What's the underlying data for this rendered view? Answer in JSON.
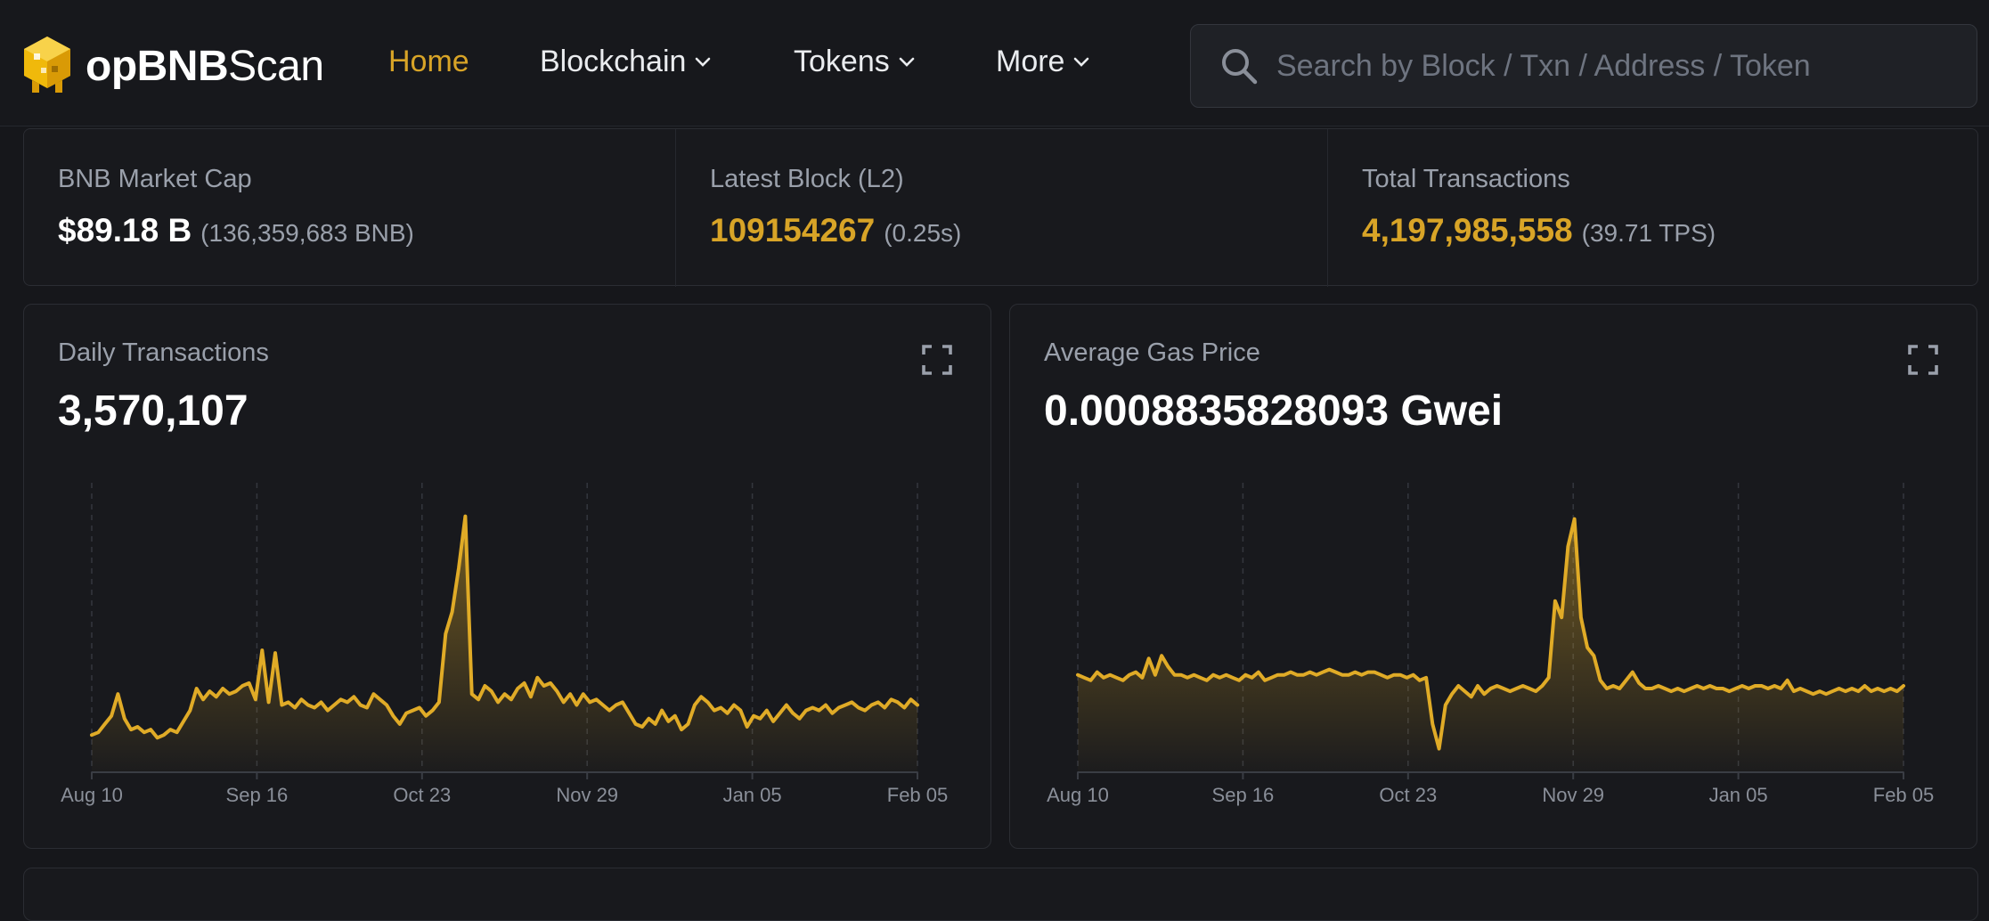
{
  "nav": {
    "logo_bold": "opBNB",
    "logo_light": "Scan",
    "items": [
      {
        "label": "Home",
        "active": true,
        "dropdown": false
      },
      {
        "label": "Blockchain",
        "active": false,
        "dropdown": true
      },
      {
        "label": "Tokens",
        "active": false,
        "dropdown": true
      },
      {
        "label": "More",
        "active": false,
        "dropdown": true
      }
    ],
    "search_placeholder": "Search by Block / Txn / Address / Token"
  },
  "stats": [
    {
      "label": "BNB Market Cap",
      "value": "$89.18 B",
      "sub": "(136,359,683 BNB)",
      "accent": false
    },
    {
      "label": "Latest Block (L2)",
      "value": "109154267",
      "sub": "(0.25s)",
      "accent": true
    },
    {
      "label": "Total Transactions",
      "value": "4,197,985,558",
      "sub": "(39.71 TPS)",
      "accent": true
    }
  ],
  "colors": {
    "accent": "#d8a427",
    "line": "#e0ab27",
    "background": "#16171b",
    "card": "#18191d"
  },
  "charts": {
    "daily": {
      "title": "Daily Transactions",
      "value": "3,570,107"
    },
    "gas": {
      "title": "Average Gas Price",
      "value": "0.0008835828093 Gwei"
    }
  },
  "chart_data": [
    {
      "type": "area",
      "title": "Daily Transactions",
      "x_ticks": [
        "Aug 10",
        "Sep 16",
        "Oct 23",
        "Nov 29",
        "Jan 05",
        "Feb 05"
      ],
      "ylim": [
        0,
        10
      ],
      "grid": "vertical dashed",
      "series": [
        {
          "values": [
            1.1,
            1.2,
            1.5,
            1.8,
            2.6,
            1.7,
            1.3,
            1.4,
            1.2,
            1.3,
            1.0,
            1.1,
            1.3,
            1.2,
            1.6,
            2.0,
            2.8,
            2.4,
            2.7,
            2.5,
            2.8,
            2.6,
            2.7,
            2.9,
            3.0,
            2.4,
            4.2,
            2.3,
            4.1,
            2.2,
            2.3,
            2.1,
            2.4,
            2.2,
            2.1,
            2.3,
            2.0,
            2.2,
            2.4,
            2.3,
            2.5,
            2.2,
            2.1,
            2.6,
            2.4,
            2.2,
            1.8,
            1.5,
            1.9,
            2.0,
            2.1,
            1.8,
            2.0,
            2.3,
            4.8,
            5.6,
            7.2,
            9.1,
            2.6,
            2.4,
            2.9,
            2.7,
            2.3,
            2.6,
            2.4,
            2.8,
            3.0,
            2.5,
            3.2,
            2.9,
            3.0,
            2.7,
            2.3,
            2.6,
            2.2,
            2.6,
            2.3,
            2.4,
            2.2,
            2.0,
            2.2,
            2.3,
            1.9,
            1.5,
            1.4,
            1.7,
            1.5,
            2.0,
            1.6,
            1.8,
            1.3,
            1.5,
            2.2,
            2.5,
            2.3,
            2.0,
            2.1,
            1.9,
            2.2,
            2.0,
            1.4,
            1.8,
            1.7,
            2.0,
            1.6,
            1.9,
            2.2,
            1.9,
            1.7,
            2.0,
            2.1,
            2.0,
            2.2,
            1.9,
            2.1,
            2.2,
            2.3,
            2.1,
            2.0,
            2.2,
            2.3,
            2.1,
            2.4,
            2.3,
            2.1,
            2.4,
            2.2
          ]
        }
      ]
    },
    {
      "type": "area",
      "title": "Average Gas Price",
      "x_ticks": [
        "Aug 10",
        "Sep 16",
        "Oct 23",
        "Nov 29",
        "Jan 05",
        "Feb 05"
      ],
      "ylim": [
        0,
        10
      ],
      "grid": "vertical dashed",
      "series": [
        {
          "values": [
            3.3,
            3.2,
            3.1,
            3.4,
            3.2,
            3.3,
            3.2,
            3.1,
            3.3,
            3.4,
            3.2,
            3.9,
            3.3,
            4.0,
            3.6,
            3.3,
            3.3,
            3.2,
            3.3,
            3.2,
            3.1,
            3.3,
            3.2,
            3.3,
            3.2,
            3.1,
            3.3,
            3.2,
            3.4,
            3.1,
            3.2,
            3.3,
            3.3,
            3.4,
            3.3,
            3.3,
            3.4,
            3.3,
            3.4,
            3.5,
            3.4,
            3.3,
            3.3,
            3.4,
            3.3,
            3.4,
            3.4,
            3.3,
            3.2,
            3.3,
            3.3,
            3.2,
            3.3,
            3.1,
            3.2,
            1.5,
            0.6,
            2.2,
            2.6,
            2.9,
            2.7,
            2.5,
            2.9,
            2.6,
            2.8,
            2.9,
            2.8,
            2.7,
            2.8,
            2.9,
            2.8,
            2.7,
            2.9,
            3.2,
            6.0,
            5.4,
            8.0,
            9.0,
            5.4,
            4.3,
            4.0,
            3.1,
            2.8,
            2.9,
            2.8,
            3.1,
            3.4,
            3.0,
            2.8,
            2.8,
            2.9,
            2.8,
            2.7,
            2.8,
            2.7,
            2.8,
            2.9,
            2.8,
            2.9,
            2.8,
            2.8,
            2.7,
            2.8,
            2.9,
            2.8,
            2.9,
            2.9,
            2.8,
            2.9,
            2.8,
            3.1,
            2.7,
            2.8,
            2.7,
            2.6,
            2.7,
            2.6,
            2.7,
            2.8,
            2.7,
            2.8,
            2.7,
            2.9,
            2.7,
            2.8,
            2.7,
            2.8,
            2.7,
            2.9
          ]
        }
      ]
    }
  ]
}
